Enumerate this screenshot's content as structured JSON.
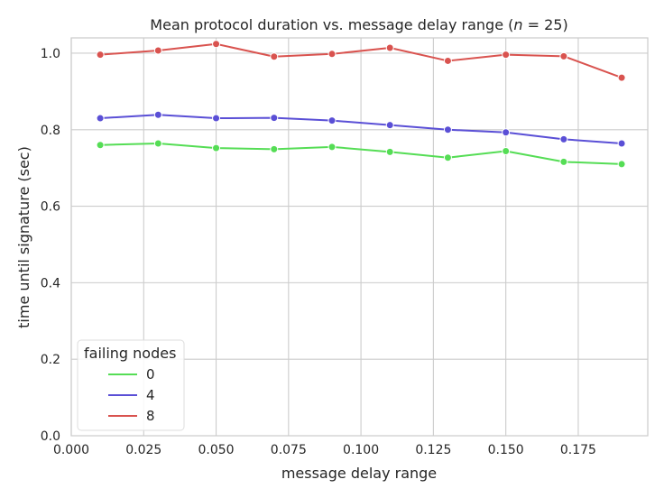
{
  "chart_data": {
    "type": "line",
    "title_pre": "Mean protocol duration vs. message delay range (",
    "title_var": "n",
    "title_post": " = 25)",
    "xlabel": "message delay range",
    "ylabel": "time until signature (sec)",
    "xlim": [
      0.0,
      0.199
    ],
    "ylim": [
      0.0,
      1.04
    ],
    "xticks": [
      "0.000",
      "0.025",
      "0.050",
      "0.075",
      "0.100",
      "0.125",
      "0.150",
      "0.175"
    ],
    "yticks": [
      "0.0",
      "0.2",
      "0.4",
      "0.6",
      "0.8",
      "1.0"
    ],
    "grid": true,
    "legend": {
      "title": "failing nodes",
      "placement": "lower-left"
    },
    "x": [
      0.01,
      0.03,
      0.05,
      0.07,
      0.09,
      0.11,
      0.13,
      0.15,
      0.17,
      0.19
    ],
    "series": [
      {
        "name": "0",
        "color": "#55dd55",
        "values": [
          0.76,
          0.764,
          0.752,
          0.749,
          0.755,
          0.742,
          0.727,
          0.744,
          0.716,
          0.71
        ]
      },
      {
        "name": "4",
        "color": "#5a4fd6",
        "values": [
          0.83,
          0.839,
          0.83,
          0.831,
          0.824,
          0.812,
          0.8,
          0.793,
          0.775,
          0.764
        ]
      },
      {
        "name": "8",
        "color": "#d9534f",
        "values": [
          0.996,
          1.007,
          1.024,
          0.991,
          0.998,
          1.014,
          0.98,
          0.996,
          0.992,
          0.936
        ]
      }
    ]
  }
}
